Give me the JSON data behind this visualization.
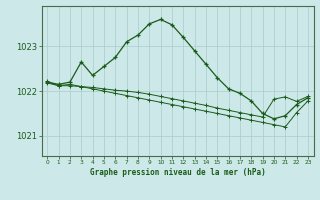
{
  "title": "Graphe pression niveau de la mer (hPa)",
  "background_color": "#cce8e8",
  "grid_color": "#aacccc",
  "line_color": "#1a5c1a",
  "xlim": [
    -0.5,
    23.5
  ],
  "ylim": [
    1020.55,
    1023.9
  ],
  "yticks": [
    1021,
    1022,
    1023
  ],
  "xticks": [
    0,
    1,
    2,
    3,
    4,
    5,
    6,
    7,
    8,
    9,
    10,
    11,
    12,
    13,
    14,
    15,
    16,
    17,
    18,
    19,
    20,
    21,
    22,
    23
  ],
  "series1_x": [
    0,
    1,
    2,
    3,
    4,
    5,
    6,
    7,
    8,
    9,
    10,
    11,
    12,
    13,
    14,
    15,
    16,
    17,
    18,
    19,
    20,
    21,
    22,
    23
  ],
  "series1_y": [
    1022.2,
    1022.15,
    1022.2,
    1022.65,
    1022.35,
    1022.55,
    1022.75,
    1023.1,
    1023.25,
    1023.5,
    1023.6,
    1023.48,
    1023.2,
    1022.9,
    1022.6,
    1022.3,
    1022.05,
    1021.95,
    1021.78,
    1021.5,
    1021.38,
    1021.45,
    1021.7,
    1021.85
  ],
  "series2_x": [
    0,
    1,
    2,
    3,
    4,
    5,
    6,
    7,
    8,
    9,
    10,
    11,
    12,
    13,
    14,
    15,
    16,
    17,
    18,
    19,
    20,
    21,
    22,
    23
  ],
  "series2_y": [
    1022.18,
    1022.12,
    1022.12,
    1022.1,
    1022.08,
    1022.05,
    1022.02,
    1022.0,
    1021.97,
    1021.93,
    1021.88,
    1021.83,
    1021.78,
    1021.73,
    1021.68,
    1021.62,
    1021.57,
    1021.52,
    1021.47,
    1021.42,
    1021.82,
    1021.87,
    1021.77,
    1021.88
  ],
  "series3_x": [
    0,
    1,
    2,
    3,
    4,
    5,
    6,
    7,
    8,
    9,
    10,
    11,
    12,
    13,
    14,
    15,
    16,
    17,
    18,
    19,
    20,
    21,
    22,
    23
  ],
  "series3_y": [
    1022.22,
    1022.12,
    1022.15,
    1022.1,
    1022.05,
    1022.0,
    1021.95,
    1021.9,
    1021.85,
    1021.8,
    1021.75,
    1021.7,
    1021.65,
    1021.6,
    1021.55,
    1021.5,
    1021.45,
    1021.4,
    1021.35,
    1021.3,
    1021.25,
    1021.2,
    1021.52,
    1021.78
  ]
}
